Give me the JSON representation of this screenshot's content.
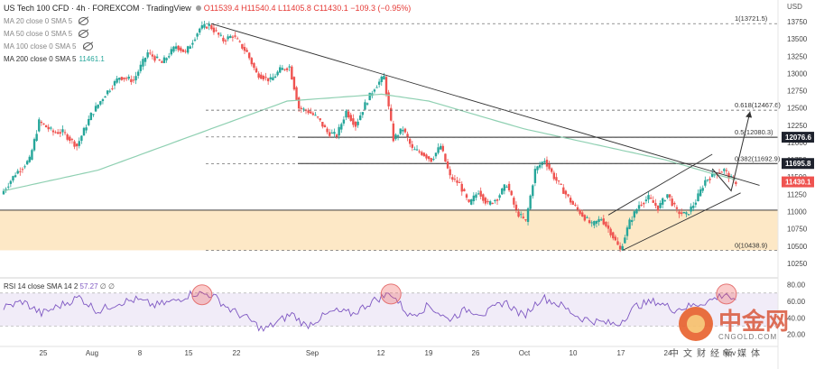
{
  "header": {
    "symbol": "US Tech 100 CFD · 4h · FOREXCOM · TradingView",
    "ohlc": "O11539.4 H11540.4 L11405.8 C11430.1 −109.3 (−0.95%)"
  },
  "indicators": [
    {
      "label": "MA 20 close 0 SMA 5",
      "value": ""
    },
    {
      "label": "MA 50 close 0 SMA 5",
      "value": ""
    },
    {
      "label": "MA 100 close 0 SMA 5",
      "value": ""
    },
    {
      "label": "MA 200 close 0 SMA 5",
      "value": "11461.1"
    }
  ],
  "currency": "USD",
  "colors": {
    "up": "#26a69a",
    "down": "#ef5350",
    "ma200": "#8fd0b2",
    "rsi": "#7e57c2",
    "zone": "#fde8c6"
  },
  "chart_data": {
    "type": "candlestick",
    "price_axis": {
      "min": 10250,
      "max": 13750,
      "ticks": [
        13750,
        13500,
        13250,
        13000,
        12750,
        12500,
        12250,
        12000,
        11750,
        11500,
        11250,
        11000,
        10750,
        10500,
        10250
      ]
    },
    "x_ticks": [
      "25",
      "Aug",
      "8",
      "15",
      "22",
      "Sep",
      "12",
      "19",
      "26",
      "Oct",
      "10",
      "17",
      "24",
      "Nov"
    ],
    "fib_levels": [
      {
        "label": "1(13721.5)",
        "value": 13721.5
      },
      {
        "label": "0.618(12467.6)",
        "value": 12467.6
      },
      {
        "label": "0.5(12080.3)",
        "value": 12080.3
      },
      {
        "label": "0.382(11692.9)",
        "value": 11692.9
      },
      {
        "label": "0(10438.9)",
        "value": 10438.9
      }
    ],
    "price_labels": [
      {
        "text": "12076.6",
        "value": 12076.6,
        "style": "dark"
      },
      {
        "text": "11695.8",
        "value": 11695.8,
        "style": "dark"
      },
      {
        "text": "11430.1",
        "value": 11430.1,
        "style": "red"
      }
    ],
    "horizontal_lines": [
      12076.6,
      11695.8
    ],
    "support_zone": [
      10438.9,
      11020
    ],
    "ohlc_path": [
      [
        0,
        11250
      ],
      [
        3,
        11550
      ],
      [
        6,
        11750
      ],
      [
        8,
        12300
      ],
      [
        11,
        12150
      ],
      [
        13,
        12150
      ],
      [
        16,
        11950
      ],
      [
        19,
        12400
      ],
      [
        22,
        12700
      ],
      [
        25,
        12950
      ],
      [
        28,
        12900
      ],
      [
        31,
        13300
      ],
      [
        34,
        13150
      ],
      [
        37,
        13400
      ],
      [
        39,
        13300
      ],
      [
        42,
        13650
      ],
      [
        44,
        13700
      ],
      [
        47,
        13480
      ],
      [
        49,
        13550
      ],
      [
        52,
        13300
      ],
      [
        54,
        13000
      ],
      [
        57,
        12900
      ],
      [
        59,
        13050
      ],
      [
        61,
        13100
      ],
      [
        63,
        12500
      ],
      [
        65,
        12450
      ],
      [
        67,
        12350
      ],
      [
        69,
        12150
      ],
      [
        71,
        12100
      ],
      [
        73,
        12450
      ],
      [
        75,
        12250
      ],
      [
        77,
        12550
      ],
      [
        79,
        12800
      ],
      [
        81,
        12950
      ],
      [
        83,
        12050
      ],
      [
        85,
        12200
      ],
      [
        87,
        11900
      ],
      [
        89,
        11850
      ],
      [
        91,
        11750
      ],
      [
        93,
        11950
      ],
      [
        95,
        11500
      ],
      [
        97,
        11400
      ],
      [
        99,
        11100
      ],
      [
        101,
        11300
      ],
      [
        103,
        11100
      ],
      [
        105,
        11200
      ],
      [
        107,
        11400
      ],
      [
        109,
        11000
      ],
      [
        111,
        10850
      ],
      [
        113,
        11600
      ],
      [
        115,
        11750
      ],
      [
        117,
        11500
      ],
      [
        119,
        11300
      ],
      [
        121,
        11100
      ],
      [
        123,
        10950
      ],
      [
        125,
        10800
      ],
      [
        127,
        10900
      ],
      [
        129,
        10700
      ],
      [
        131,
        10440
      ],
      [
        133,
        10850
      ],
      [
        135,
        11100
      ],
      [
        137,
        11200
      ],
      [
        139,
        11050
      ],
      [
        141,
        11250
      ],
      [
        143,
        11000
      ],
      [
        145,
        10950
      ],
      [
        147,
        11150
      ],
      [
        149,
        11450
      ],
      [
        151,
        11550
      ],
      [
        153,
        11600
      ],
      [
        155,
        11430
      ]
    ],
    "ma200_path": [
      [
        0,
        11300
      ],
      [
        20,
        11600
      ],
      [
        40,
        12100
      ],
      [
        60,
        12600
      ],
      [
        80,
        12700
      ],
      [
        90,
        12600
      ],
      [
        100,
        12400
      ],
      [
        110,
        12200
      ],
      [
        120,
        12050
      ],
      [
        130,
        11900
      ],
      [
        140,
        11750
      ],
      [
        150,
        11550
      ],
      [
        155,
        11461
      ]
    ],
    "rsi": {
      "label": "RSI 14 close SMA 14 2",
      "value1": "57.27",
      "value2": "∅ ∅",
      "ticks": [
        80,
        60,
        40,
        20
      ],
      "band": [
        70,
        30
      ],
      "path": [
        [
          0,
          52
        ],
        [
          4,
          60
        ],
        [
          8,
          45
        ],
        [
          12,
          55
        ],
        [
          16,
          65
        ],
        [
          20,
          48
        ],
        [
          24,
          58
        ],
        [
          28,
          62
        ],
        [
          32,
          55
        ],
        [
          36,
          60
        ],
        [
          40,
          70
        ],
        [
          44,
          68
        ],
        [
          48,
          50
        ],
        [
          52,
          38
        ],
        [
          55,
          25
        ],
        [
          58,
          35
        ],
        [
          61,
          45
        ],
        [
          64,
          30
        ],
        [
          67,
          40
        ],
        [
          70,
          48
        ],
        [
          74,
          45
        ],
        [
          78,
          60
        ],
        [
          82,
          70
        ],
        [
          86,
          42
        ],
        [
          90,
          55
        ],
        [
          94,
          38
        ],
        [
          98,
          50
        ],
        [
          102,
          45
        ],
        [
          106,
          60
        ],
        [
          110,
          42
        ],
        [
          114,
          65
        ],
        [
          118,
          55
        ],
        [
          122,
          40
        ],
        [
          126,
          35
        ],
        [
          130,
          32
        ],
        [
          134,
          55
        ],
        [
          138,
          60
        ],
        [
          142,
          50
        ],
        [
          146,
          55
        ],
        [
          150,
          62
        ],
        [
          153,
          70
        ],
        [
          155,
          57
        ]
      ],
      "circles_at": [
        42,
        82,
        153
      ]
    },
    "trendlines": [
      {
        "from": [
          44,
          13720
        ],
        "to": [
          160,
          11380
        ]
      },
      {
        "from": [
          131,
          10438
        ],
        "to": [
          156,
          11270
        ]
      },
      {
        "from": [
          128,
          10950
        ],
        "to": [
          150,
          11830
        ]
      }
    ],
    "projection": [
      [
        150,
        11620
      ],
      [
        154,
        11300
      ],
      [
        158,
        12450
      ]
    ]
  },
  "watermark": {
    "cn": "中金网",
    "site": "CNGOLD.COM",
    "tag": "中文财经新媒体"
  }
}
